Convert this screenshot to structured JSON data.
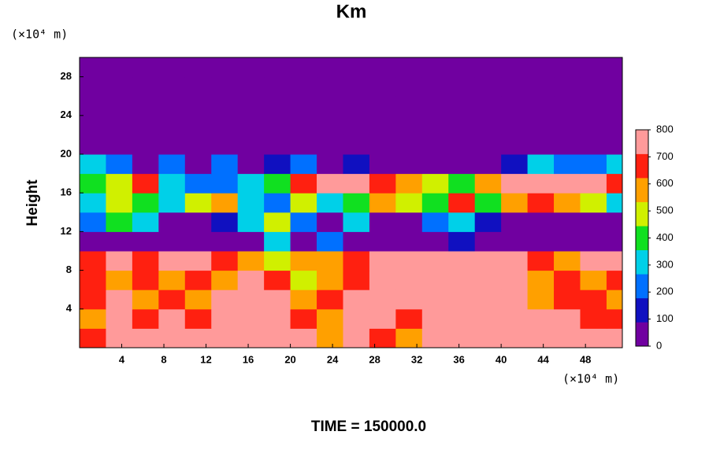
{
  "chart_data": {
    "type": "heatmap",
    "title": "Km",
    "y_unit_label": "(×10⁴ m)",
    "x_unit_label": "(×10⁴ m)",
    "y_label": "Height",
    "footer": "TIME = 150000.0",
    "xlim": [
      0,
      51.5
    ],
    "ylim": [
      0,
      30
    ],
    "xticks": [
      4,
      8,
      12,
      16,
      20,
      24,
      28,
      32,
      36,
      40,
      44,
      48
    ],
    "yticks": [
      4,
      8,
      12,
      16,
      20,
      24,
      28
    ],
    "x": [
      1.25,
      3.75,
      6.25,
      8.75,
      11.25,
      13.75,
      16.25,
      18.75,
      21.25,
      23.75,
      26.25,
      28.75,
      31.25,
      33.75,
      36.25,
      38.75,
      41.25,
      43.75,
      46.25,
      48.75,
      51.25
    ],
    "y": [
      1,
      3,
      5,
      7,
      9,
      11,
      13,
      15,
      17,
      19,
      21,
      23,
      25,
      27,
      29
    ],
    "z": [
      [
        700,
        800,
        800,
        800,
        800,
        800,
        800,
        800,
        800,
        600,
        800,
        700,
        600,
        800,
        800,
        800,
        800,
        800,
        800,
        800,
        800
      ],
      [
        600,
        800,
        700,
        800,
        700,
        800,
        800,
        800,
        700,
        600,
        800,
        800,
        700,
        800,
        800,
        800,
        800,
        800,
        800,
        700,
        700
      ],
      [
        700,
        800,
        600,
        700,
        600,
        800,
        800,
        800,
        600,
        700,
        800,
        800,
        800,
        800,
        800,
        800,
        800,
        600,
        700,
        700,
        600
      ],
      [
        700,
        600,
        700,
        600,
        700,
        600,
        800,
        700,
        500,
        600,
        700,
        800,
        800,
        800,
        800,
        800,
        800,
        600,
        700,
        600,
        700
      ],
      [
        700,
        800,
        700,
        800,
        800,
        700,
        600,
        500,
        600,
        600,
        700,
        800,
        800,
        800,
        800,
        800,
        800,
        700,
        600,
        800,
        800
      ],
      [
        0,
        0,
        0,
        0,
        0,
        0,
        0,
        300,
        0,
        200,
        0,
        0,
        0,
        0,
        100,
        0,
        0,
        0,
        0,
        0,
        0
      ],
      [
        200,
        400,
        300,
        0,
        0,
        100,
        300,
        500,
        200,
        0,
        300,
        0,
        0,
        200,
        300,
        100,
        0,
        0,
        0,
        0,
        0
      ],
      [
        300,
        500,
        400,
        300,
        500,
        600,
        300,
        200,
        500,
        300,
        400,
        600,
        500,
        400,
        700,
        400,
        600,
        700,
        600,
        500,
        300
      ],
      [
        400,
        500,
        700,
        300,
        200,
        200,
        300,
        400,
        700,
        800,
        800,
        700,
        600,
        500,
        400,
        600,
        800,
        800,
        800,
        800,
        700
      ],
      [
        300,
        200,
        0,
        200,
        0,
        200,
        0,
        100,
        200,
        0,
        100,
        0,
        0,
        0,
        0,
        0,
        100,
        300,
        200,
        200,
        300
      ],
      [
        0,
        0,
        0,
        0,
        0,
        0,
        0,
        0,
        0,
        0,
        0,
        0,
        0,
        0,
        0,
        0,
        0,
        0,
        0,
        0,
        0
      ],
      [
        0,
        0,
        0,
        0,
        0,
        0,
        0,
        0,
        0,
        0,
        0,
        0,
        0,
        0,
        0,
        0,
        0,
        0,
        0,
        0,
        0
      ],
      [
        0,
        0,
        0,
        0,
        0,
        0,
        0,
        0,
        0,
        0,
        0,
        0,
        0,
        0,
        0,
        0,
        0,
        0,
        0,
        0,
        0
      ],
      [
        0,
        0,
        0,
        0,
        0,
        0,
        0,
        0,
        0,
        0,
        0,
        0,
        0,
        0,
        0,
        0,
        0,
        0,
        0,
        0,
        0
      ],
      [
        0,
        0,
        0,
        0,
        0,
        0,
        0,
        0,
        0,
        0,
        0,
        0,
        0,
        0,
        0,
        0,
        0,
        0,
        0,
        0,
        0
      ]
    ],
    "colorbar": {
      "ticks": [
        0,
        100,
        200,
        300,
        400,
        500,
        600,
        700,
        800
      ],
      "colors": [
        "#7000a0",
        "#1010c0",
        "#0070ff",
        "#00d0e8",
        "#10e020",
        "#d0f000",
        "#ffa000",
        "#ff2010",
        "#ff9a9a"
      ]
    }
  }
}
